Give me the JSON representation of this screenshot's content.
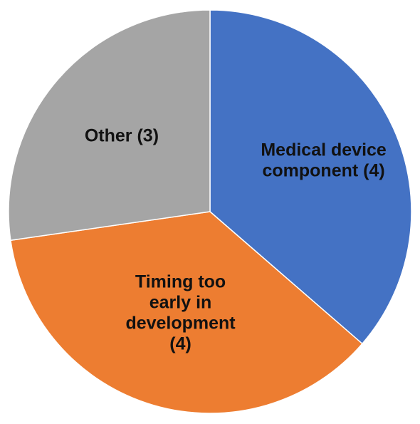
{
  "chart_data": {
    "type": "pie",
    "start_angle_deg": 0,
    "direction": "clockwise",
    "legend": "none",
    "slices": [
      {
        "label_lines": [
          "Medical device",
          "component (4)"
        ],
        "category": "Medical device component",
        "value": 4,
        "color": "#4472C4"
      },
      {
        "label_lines": [
          "Timing too",
          "early in",
          "development",
          "(4)"
        ],
        "category": "Timing too early in development",
        "value": 4,
        "color": "#ED7D31"
      },
      {
        "label_lines": [
          "Other (3)"
        ],
        "category": "Other",
        "value": 3,
        "color": "#A5A5A5"
      }
    ]
  }
}
